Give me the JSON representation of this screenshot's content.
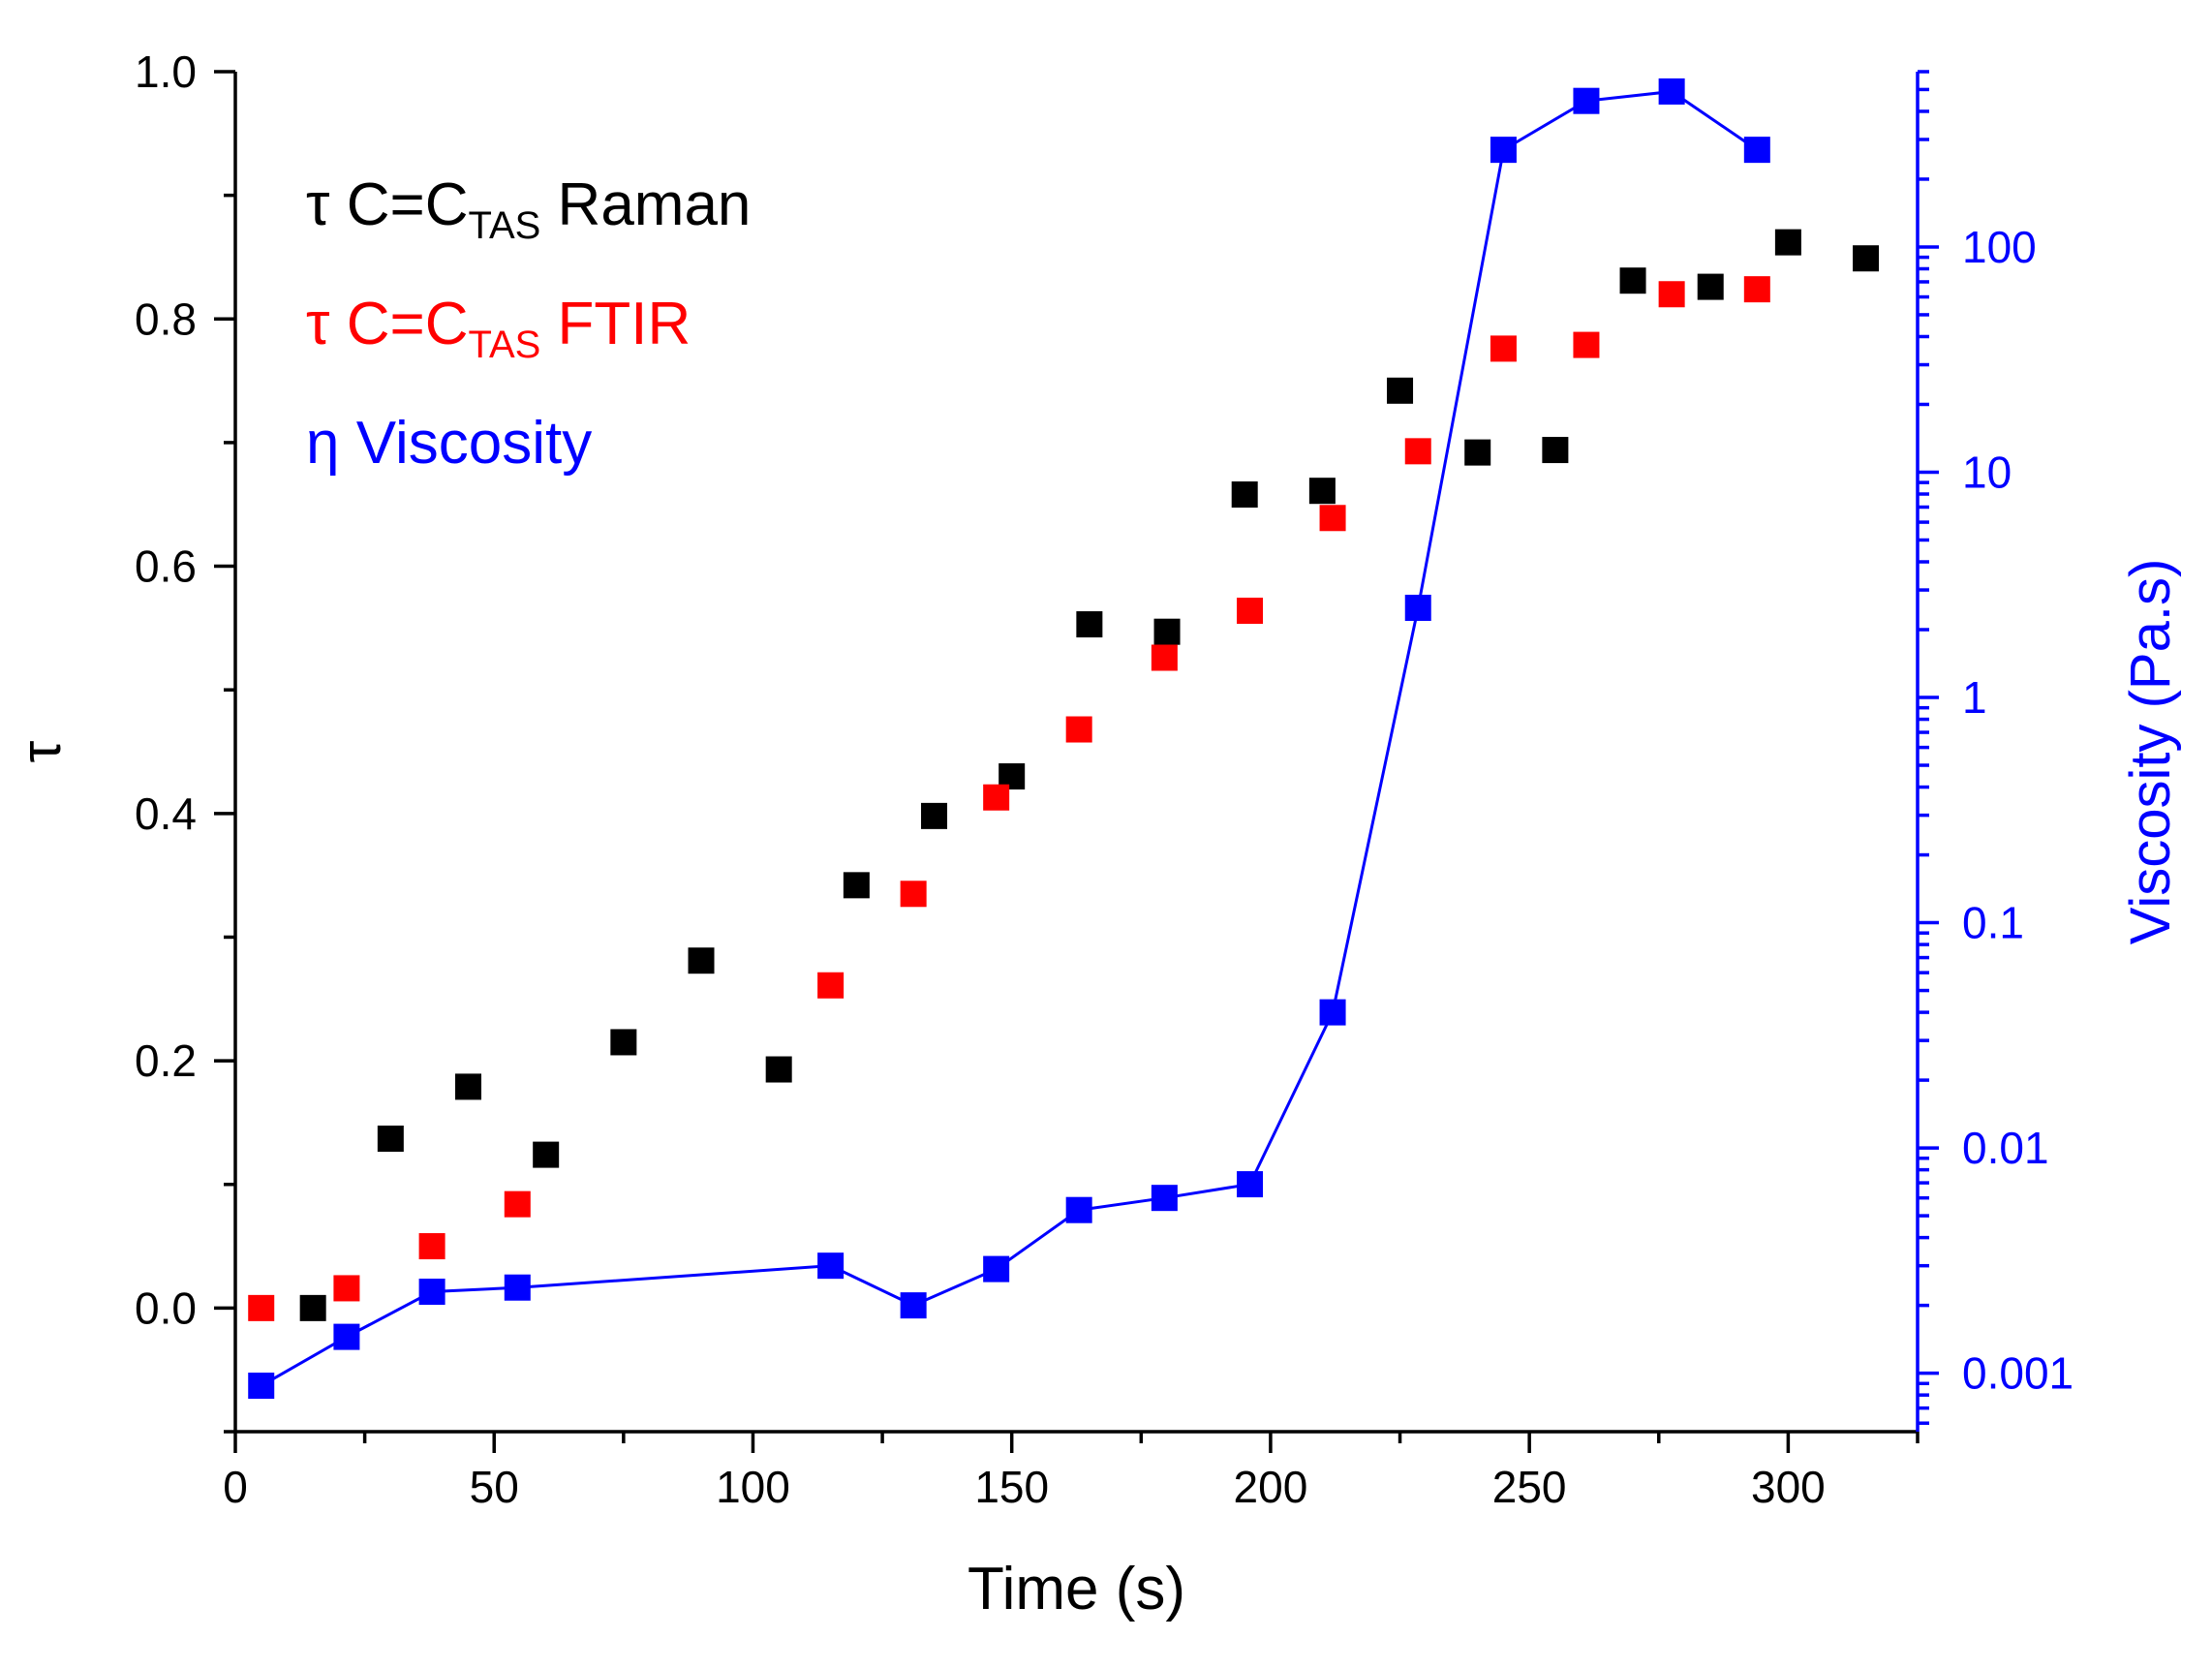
{
  "chart_data": {
    "type": "scatter",
    "x_axis": {
      "label": "Time (s)",
      "range": [
        0,
        325
      ],
      "ticks": [
        0,
        50,
        100,
        150,
        200,
        250,
        300
      ],
      "tick_labels": [
        "0",
        "50",
        "100",
        "150",
        "200",
        "250",
        "300"
      ],
      "minor_step": 25
    },
    "y_axis_left": {
      "label": "τ",
      "range": [
        -0.1,
        1.0
      ],
      "ticks": [
        0.0,
        0.2,
        0.4,
        0.6,
        0.8,
        1.0
      ],
      "tick_labels": [
        "0.0",
        "0.2",
        "0.4",
        "0.6",
        "0.8",
        "1.0"
      ],
      "minor_step": 0.1
    },
    "y_axis_right": {
      "label": "Viscosity (Pa.s)",
      "scale": "log",
      "range": [
        0.00055,
        600
      ],
      "ticks": [
        0.001,
        0.01,
        0.1,
        1,
        10,
        100
      ],
      "tick_labels": [
        "0.001",
        "0.01",
        "0.1",
        "1",
        "10",
        "100"
      ],
      "color": "#0000ff"
    },
    "legend": {
      "position": "top-left",
      "entries": [
        {
          "prefix": "τ C=C",
          "sub": "TAS",
          "suffix": " Raman",
          "color": "#000000"
        },
        {
          "prefix": "τ C=C",
          "sub": "TAS",
          "suffix": " FTIR",
          "color": "#ff0000"
        },
        {
          "prefix": "η Viscosity",
          "sub": "",
          "suffix": "",
          "color": "#0000ff"
        }
      ]
    },
    "series": [
      {
        "name": "τ C=C TAS Raman",
        "axis": "left",
        "color": "#000000",
        "line": false,
        "x": [
          15,
          30,
          45,
          60,
          75,
          90,
          105,
          120,
          135,
          150,
          165,
          180,
          195,
          210,
          225,
          240,
          255,
          270,
          285,
          300,
          315
        ],
        "y": [
          0.0,
          0.137,
          0.179,
          0.124,
          0.215,
          0.281,
          0.193,
          0.342,
          0.398,
          0.43,
          0.553,
          0.547,
          0.658,
          0.661,
          0.742,
          0.692,
          0.694,
          0.831,
          0.826,
          0.862,
          0.849
        ]
      },
      {
        "name": "τ C=C TAS FTIR",
        "axis": "left",
        "color": "#ff0000",
        "line": false,
        "x": [
          5,
          21.5,
          38,
          54.5,
          115,
          131,
          147,
          163,
          179.5,
          196,
          212,
          228.5,
          245,
          261,
          277.5,
          294
        ],
        "y": [
          0.0,
          0.016,
          0.05,
          0.084,
          0.261,
          0.335,
          0.413,
          0.468,
          0.526,
          0.564,
          0.639,
          0.693,
          0.776,
          0.779,
          0.82,
          0.824
        ]
      },
      {
        "name": "η Viscosity",
        "axis": "right",
        "color": "#0000ff",
        "line": true,
        "x": [
          5,
          21.5,
          38,
          54.5,
          115,
          131,
          147,
          163,
          179.5,
          196,
          212,
          228.5,
          245,
          261,
          277.5,
          294
        ],
        "y": [
          0.00088,
          0.00145,
          0.0023,
          0.0024,
          0.003,
          0.002,
          0.0029,
          0.0053,
          0.006,
          0.0069,
          0.04,
          2.5,
          270,
          445,
          490,
          270
        ]
      }
    ]
  }
}
